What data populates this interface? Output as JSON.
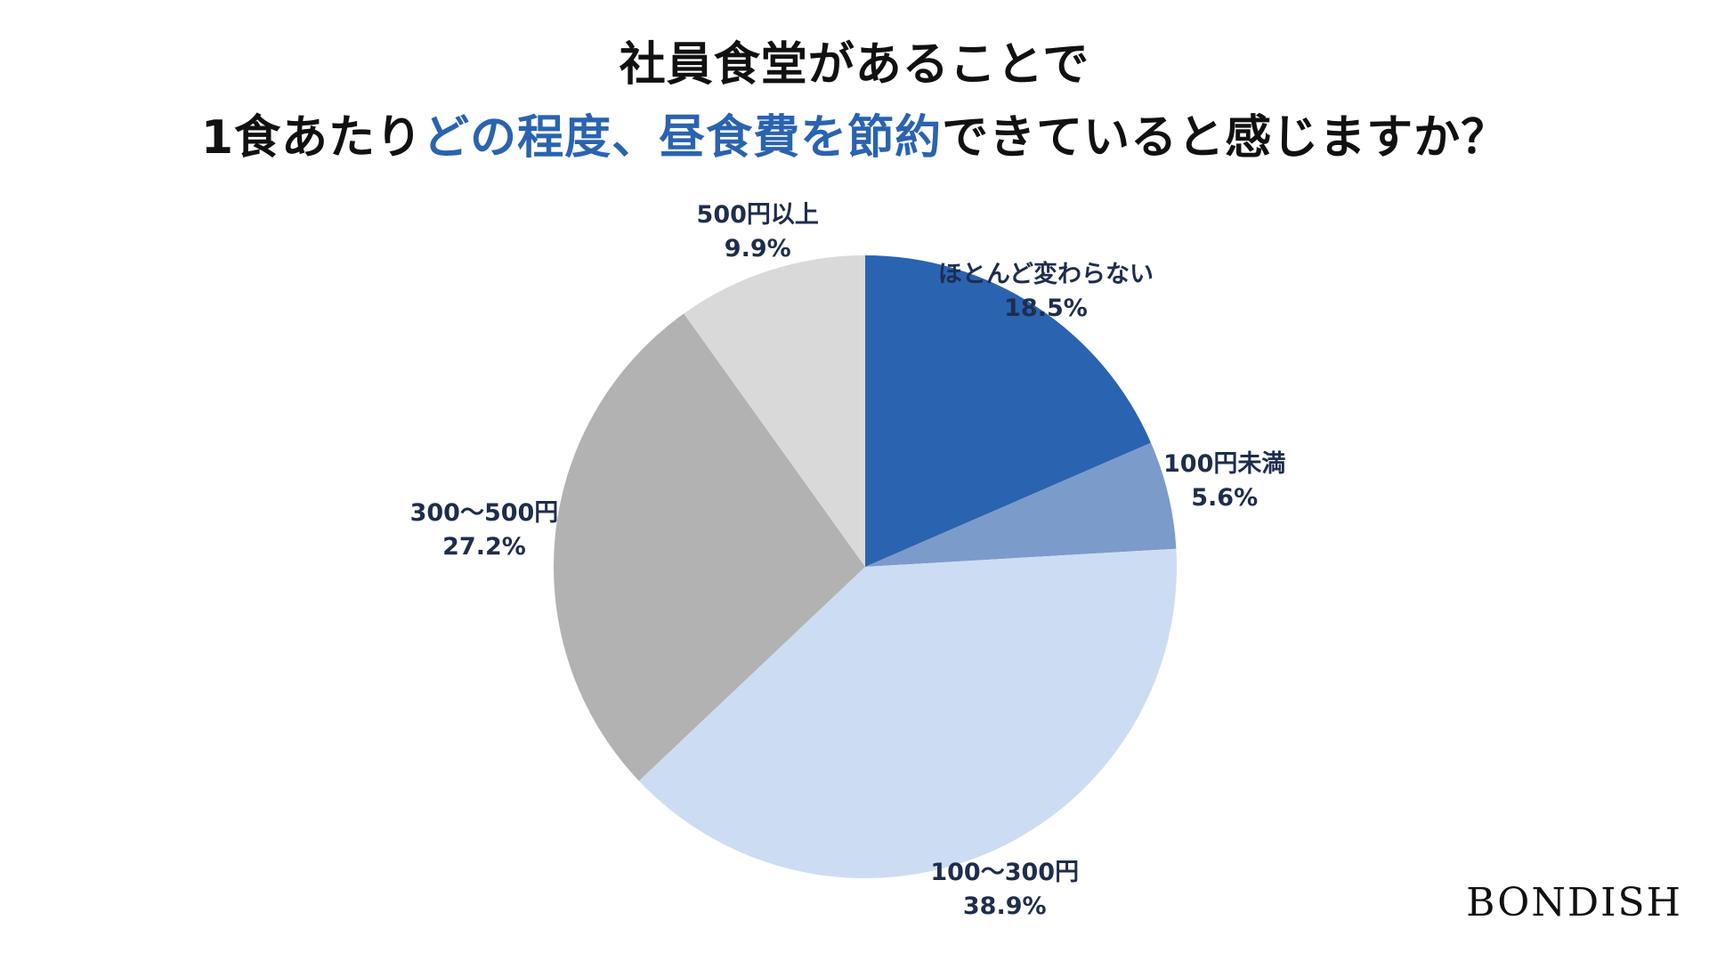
{
  "title": {
    "line1": "社員食堂があることで",
    "line2_prefix": "1食あたり",
    "line2_highlight1": "どの程度、",
    "line2_highlight2": "昼食費を節約",
    "line2_suffix": "できていると感じますか？"
  },
  "brand": "BONDISH",
  "chart_data": {
    "type": "pie",
    "title": "社員食堂があることで1食あたりどの程度、昼食費を節約できていると感じますか？",
    "start": "12 o'clock, clockwise",
    "slices": [
      {
        "label": "ほとんど変わらない",
        "value": 18.5,
        "value_label": "18.5%",
        "color": "#2a63b0"
      },
      {
        "label": "100円未満",
        "value": 5.6,
        "value_label": "5.6%",
        "color": "#7b9bcb"
      },
      {
        "label": "100〜300円",
        "value": 38.9,
        "value_label": "38.9%",
        "color": "#ccddf3"
      },
      {
        "label": "300〜500円",
        "value": 27.2,
        "value_label": "27.2%",
        "color": "#b2b2b2"
      },
      {
        "label": "500円以上",
        "value": 9.9,
        "value_label": "9.9%",
        "color": "#d9d9d9"
      }
    ]
  }
}
